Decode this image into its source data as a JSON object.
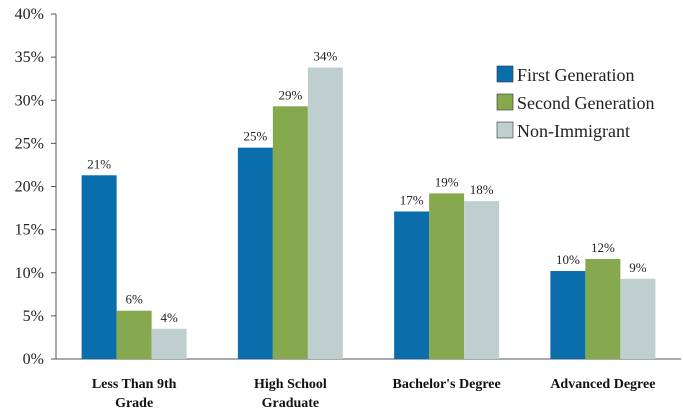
{
  "chart_data": {
    "type": "bar",
    "categories": [
      [
        "Less Than 9th",
        "Grade"
      ],
      [
        "High School",
        "Graduate"
      ],
      [
        "Bachelor's Degree"
      ],
      [
        "Advanced Degree"
      ]
    ],
    "series": [
      {
        "name": "First Generation",
        "color": "#0a6ead",
        "values": [
          21.3,
          24.5,
          17.1,
          10.2
        ],
        "labels": [
          "21%",
          "25%",
          "17%",
          "10%"
        ]
      },
      {
        "name": "Second Generation",
        "color": "#86a84e",
        "values": [
          5.6,
          29.3,
          19.2,
          11.6
        ],
        "labels": [
          "6%",
          "29%",
          "19%",
          "12%"
        ]
      },
      {
        "name": "Non-Immigrant",
        "color": "#bfcecf",
        "values": [
          3.5,
          33.8,
          18.3,
          9.3
        ],
        "labels": [
          "4%",
          "34%",
          "18%",
          "9%"
        ]
      }
    ],
    "ylim": [
      0,
      40
    ],
    "yticks": [
      "0%",
      "5%",
      "10%",
      "15%",
      "20%",
      "25%",
      "30%",
      "35%",
      "40%"
    ],
    "ytick_values": [
      0,
      5,
      10,
      15,
      20,
      25,
      30,
      35,
      40
    ],
    "legend_position": "top-right",
    "grid": false
  }
}
